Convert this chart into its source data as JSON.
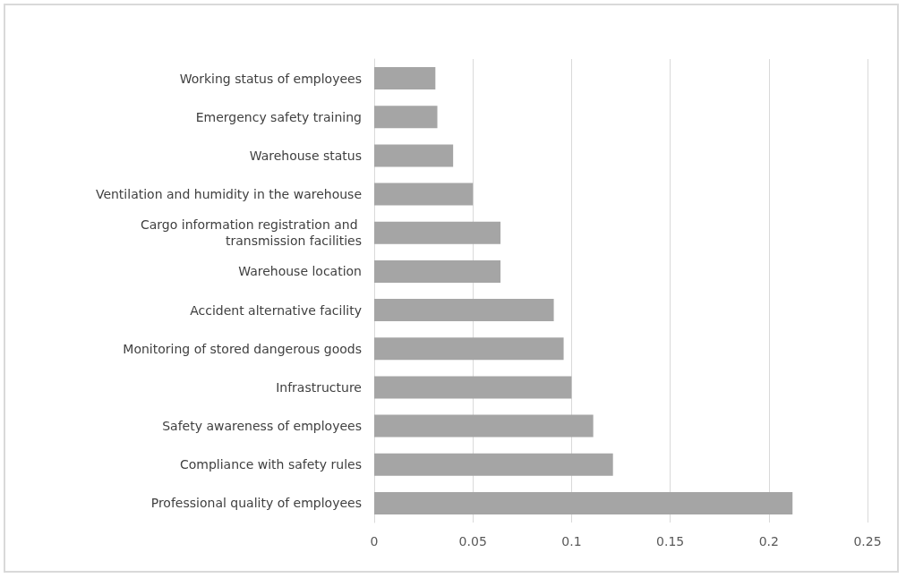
{
  "chart_data": {
    "type": "bar",
    "orientation": "horizontal",
    "categories": [
      "Working status of employees",
      "Emergency safety training",
      "Warehouse status",
      "Ventilation and humidity in the warehouse",
      "Cargo information registration and transmission facilities",
      "Warehouse location",
      "Accident alternative facility",
      "Monitoring of stored dangerous goods",
      "Infrastructure",
      "Safety awareness of employees",
      "Compliance with safety rules",
      "Professional quality of employees"
    ],
    "values": [
      0.031,
      0.032,
      0.04,
      0.05,
      0.064,
      0.064,
      0.091,
      0.096,
      0.1,
      0.111,
      0.121,
      0.212
    ],
    "color": "#a5a5a5",
    "xlim": [
      0,
      0.25
    ],
    "xticks": [
      0,
      0.05,
      0.1,
      0.15,
      0.2,
      0.25
    ],
    "grid": "x"
  }
}
